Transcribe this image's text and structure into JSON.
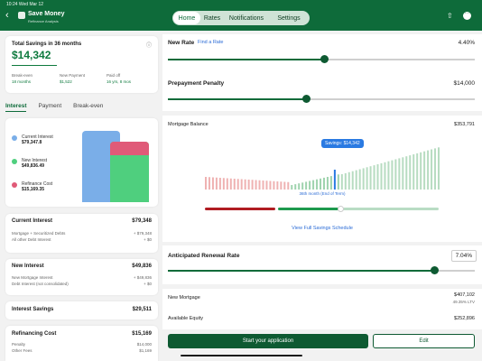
{
  "status": {
    "time": "10:24 Wed Mar 12"
  },
  "header": {
    "title": "Save Money",
    "subtitle": "Refinance Analysis",
    "tabs": [
      {
        "label": "Home",
        "active": true
      },
      {
        "label": "Rates",
        "active": false
      },
      {
        "label": "Notifications",
        "active": false
      },
      {
        "label": "Settings",
        "active": false
      }
    ]
  },
  "summary": {
    "title": "Total Savings in 36 months",
    "amount": "$14,342",
    "stats": [
      {
        "label": "Break-even",
        "value": "18 months"
      },
      {
        "label": "New Payment",
        "value": "$1,522"
      },
      {
        "label": "Paid off",
        "value": "16 yrs, 8 mos"
      }
    ]
  },
  "left_tabs": [
    {
      "label": "Interest",
      "active": true
    },
    {
      "label": "Payment",
      "active": false
    },
    {
      "label": "Break-even",
      "active": false
    }
  ],
  "legend": [
    {
      "label": "Current Interest",
      "value": "$79,347.8",
      "color": "#7aaee8"
    },
    {
      "label": "New Interest",
      "value": "$49,836.49",
      "color": "#4fcf7e"
    },
    {
      "label": "Refinance Cost",
      "value": "$15,169.35",
      "color": "#e05a78"
    }
  ],
  "current_interest": {
    "title": "Current Interest",
    "total": "$79,348",
    "rows": [
      {
        "label": "Mortgage + Securitized Debts",
        "value": "+ $79,348"
      },
      {
        "label": "All other Debt Interest",
        "value": "+ $0"
      }
    ]
  },
  "new_interest": {
    "title": "New Interest",
    "total": "$49,836",
    "rows": [
      {
        "label": "New Mortgage Interest",
        "value": "+ $49,836"
      },
      {
        "label": "Debt Interest (not consolidated)",
        "value": "+ $0"
      }
    ]
  },
  "interest_savings": {
    "label": "Interest Savings",
    "value": "$29,511"
  },
  "refinancing_cost": {
    "title": "Refinancing Cost",
    "total": "$15,169",
    "rows": [
      {
        "label": "Penalty",
        "value": "$14,000"
      },
      {
        "label": "Other Fees",
        "value": "$1,169"
      }
    ]
  },
  "new_rate": {
    "label": "New Rate",
    "link": "Find a Rate",
    "value": "4.40%",
    "position": 0.51
  },
  "prepayment": {
    "label": "Prepayment Penalty",
    "value": "$14,000",
    "position": 0.45
  },
  "balance": {
    "label": "Mortgage Balance",
    "value": "$353,791",
    "tooltip": "Savings: $14,342",
    "marker_caption": "36th month (End of Term)",
    "link": "View Full Savings Schedule"
  },
  "renewal": {
    "label": "Anticipated Renewal Rate",
    "value": "7.04%",
    "position": 0.87
  },
  "new_mortgage": {
    "label": "New Mortgage",
    "value": "$407,102",
    "sub": "49.35% LTV"
  },
  "available_equity": {
    "label": "Available Equity",
    "value": "$252,896"
  },
  "actions": {
    "primary": "Start your application",
    "secondary": "Edit"
  }
}
